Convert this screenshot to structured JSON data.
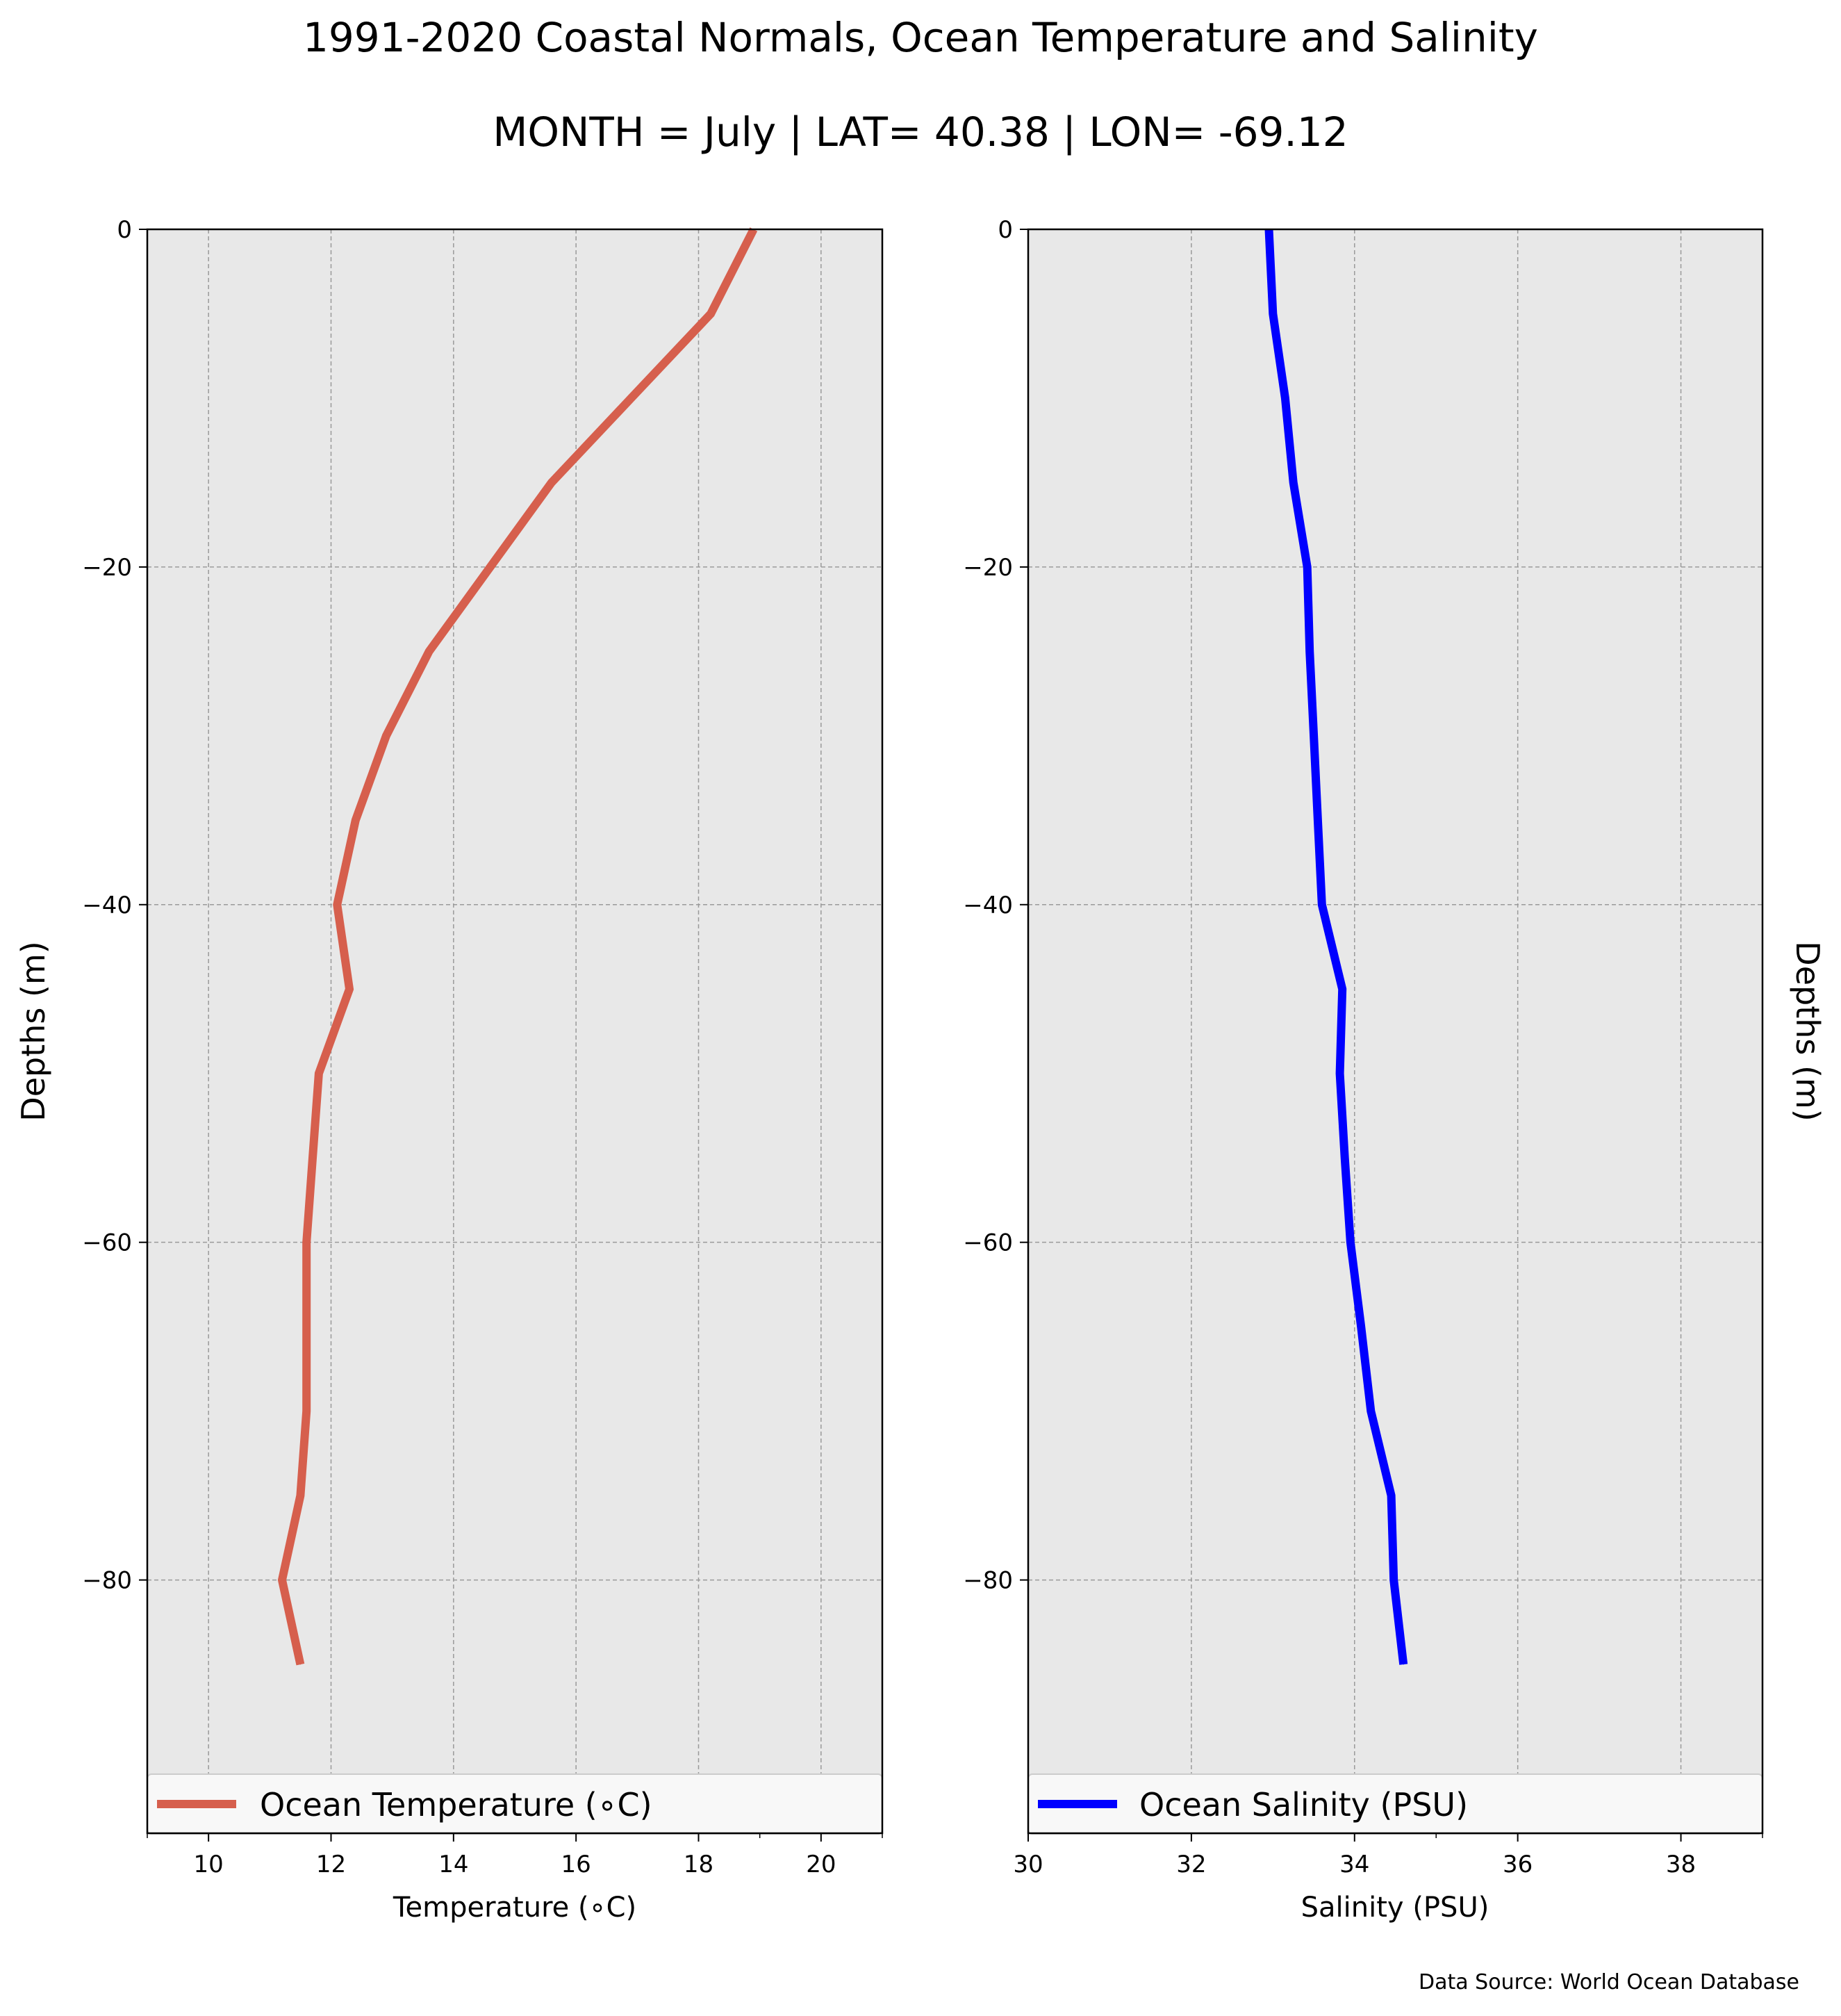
{
  "figure": {
    "title": "1991-2020 Coastal Normals, Ocean Temperature and Salinity",
    "subtitle": "MONTH = July | LAT= 40.38 | LON= -69.12",
    "source_note": "Data Source: World Ocean Database",
    "background": "#e8e8e8",
    "grid_color": "#9a9a9a"
  },
  "chart_data": [
    {
      "type": "line",
      "xlabel": "Temperature (∘C)",
      "ylabel": "Depths (m)",
      "xlim": [
        9,
        21
      ],
      "ylim": [
        -95,
        0
      ],
      "xticks": [
        10,
        12,
        14,
        16,
        18,
        20
      ],
      "xtick_labels": [
        "10",
        "12",
        "14",
        "16",
        "18",
        "20"
      ],
      "yticks": [
        0,
        -20,
        -40,
        -60,
        -80
      ],
      "ytick_labels": [
        "0",
        "−20",
        "−40",
        "−60",
        "−80"
      ],
      "grid": true,
      "legend": "bottom",
      "series": [
        {
          "name": "Ocean Temperature (∘C)",
          "color": "#d65f4d",
          "x": [
            18.9,
            18.2,
            16.9,
            15.6,
            14.6,
            13.6,
            12.9,
            12.4,
            12.1,
            12.3,
            11.8,
            11.7,
            11.6,
            11.6,
            11.6,
            11.5,
            11.2,
            11.5
          ],
          "y": [
            0,
            -5,
            -10,
            -15,
            -20,
            -25,
            -30,
            -35,
            -40,
            -45,
            -50,
            -55,
            -60,
            -65,
            -70,
            -75,
            -80,
            -85
          ]
        }
      ]
    },
    {
      "type": "line",
      "xlabel": "Salinity (PSU)",
      "ylabel": "Depths (m)",
      "xlim": [
        30,
        39
      ],
      "ylim": [
        -95,
        0
      ],
      "xticks": [
        30,
        32,
        34,
        36,
        38
      ],
      "xtick_labels": [
        "30",
        "32",
        "34",
        "36",
        "38"
      ],
      "yticks": [
        0,
        -20,
        -40,
        -60,
        -80
      ],
      "ytick_labels": [
        "0",
        "−20",
        "−40",
        "−60",
        "−80"
      ],
      "grid": true,
      "legend": "bottom",
      "series": [
        {
          "name": "Ocean Salinity (PSU)",
          "color": "#0000ff",
          "x": [
            32.95,
            33.0,
            33.15,
            33.25,
            33.42,
            33.45,
            33.5,
            33.55,
            33.6,
            33.85,
            33.82,
            33.88,
            33.95,
            34.08,
            34.2,
            34.45,
            34.48,
            34.6
          ],
          "y": [
            0,
            -5,
            -10,
            -15,
            -20,
            -25,
            -30,
            -35,
            -40,
            -45,
            -50,
            -55,
            -60,
            -65,
            -70,
            -75,
            -80,
            -85
          ]
        }
      ]
    }
  ]
}
